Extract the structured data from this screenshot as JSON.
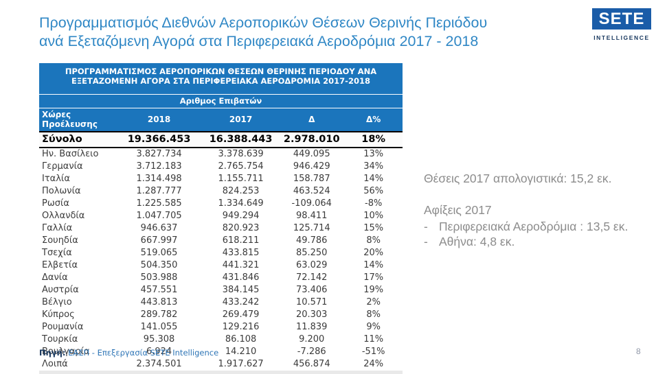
{
  "page": {
    "title_line1": "Προγραμματισμός Διεθνών Αεροπορικών Θέσεων Θερινής Περιόδου",
    "title_line2": "ανά Εξεταζόμενη Αγορά στα Περιφερειακά Αεροδρόμια 2017 - 2018",
    "page_number": "8"
  },
  "logo": {
    "text": "SETE",
    "subtext": "INTELLIGENCE",
    "box_color": "#1a5ca8",
    "subtext_color": "#17375e"
  },
  "colors": {
    "title_blue": "#2f87c5",
    "table_header_blue": "#1b75bc",
    "notes_gray": "#8c8c8c",
    "source_blue": "#2e75b6"
  },
  "table": {
    "header_line1": "ΠΡΟΓΡΑΜΜΑΤΙΣΜΟΣ ΑΕΡΟΠΟΡΙΚΩΝ ΘΕΣΕΩΝ ΘΕΡΙΝΗΣ ΠΕΡΙΟΔΟΥ ΑΝΑ",
    "header_line2": "ΕΞΕΤΑΖΟΜΕΝΗ ΑΓΟΡΑ ΣΤΑ ΠΕΡΙΦΕΡΕΙΑΚΑ ΑΕΡΟΔΡΟΜΙΑ 2017-2018",
    "subheader": "Αριθμος Επιβατών",
    "columns": [
      "Χώρες Προέλευσης",
      "2018",
      "2017",
      "Δ",
      "Δ%"
    ],
    "total_row": {
      "label": "Σύνολο",
      "y2018": "19.366.453",
      "y2017": "16.388.443",
      "delta": "2.978.010",
      "delta_pct": "18%"
    },
    "rows": [
      {
        "label": "Ην. Βασίλειο",
        "y2018": "3.827.734",
        "y2017": "3.378.639",
        "delta": "449.095",
        "delta_pct": "13%"
      },
      {
        "label": "Γερμανία",
        "y2018": "3.712.183",
        "y2017": "2.765.754",
        "delta": "946.429",
        "delta_pct": "34%"
      },
      {
        "label": "Ιταλία",
        "y2018": "1.314.498",
        "y2017": "1.155.711",
        "delta": "158.787",
        "delta_pct": "14%"
      },
      {
        "label": "Πολωνία",
        "y2018": "1.287.777",
        "y2017": "824.253",
        "delta": "463.524",
        "delta_pct": "56%"
      },
      {
        "label": "Ρωσία",
        "y2018": "1.225.585",
        "y2017": "1.334.649",
        "delta": "-109.064",
        "delta_pct": "-8%"
      },
      {
        "label": "Ολλανδία",
        "y2018": "1.047.705",
        "y2017": "949.294",
        "delta": "98.411",
        "delta_pct": "10%"
      },
      {
        "label": "Γαλλία",
        "y2018": "946.637",
        "y2017": "820.923",
        "delta": "125.714",
        "delta_pct": "15%"
      },
      {
        "label": "Σουηδία",
        "y2018": "667.997",
        "y2017": "618.211",
        "delta": "49.786",
        "delta_pct": "8%"
      },
      {
        "label": "Τσεχία",
        "y2018": "519.065",
        "y2017": "433.815",
        "delta": "85.250",
        "delta_pct": "20%"
      },
      {
        "label": "Ελβετία",
        "y2018": "504.350",
        "y2017": "441.321",
        "delta": "63.029",
        "delta_pct": "14%"
      },
      {
        "label": "Δανία",
        "y2018": "503.988",
        "y2017": "431.846",
        "delta": "72.142",
        "delta_pct": "17%"
      },
      {
        "label": "Αυστρία",
        "y2018": "457.551",
        "y2017": "384.145",
        "delta": "73.406",
        "delta_pct": "19%"
      },
      {
        "label": "Βέλγιο",
        "y2018": "443.813",
        "y2017": "433.242",
        "delta": "10.571",
        "delta_pct": "2%"
      },
      {
        "label": "Κύπρος",
        "y2018": "289.782",
        "y2017": "269.479",
        "delta": "20.303",
        "delta_pct": "8%"
      },
      {
        "label": "Ρουμανία",
        "y2018": "141.055",
        "y2017": "129.216",
        "delta": "11.839",
        "delta_pct": "9%"
      },
      {
        "label": "Τουρκία",
        "y2018": "95.308",
        "y2017": "86.108",
        "delta": "9.200",
        "delta_pct": "11%"
      },
      {
        "label": "Βουλγαρία",
        "y2018": "6.924",
        "y2017": "14.210",
        "delta": "-7.286",
        "delta_pct": "-51%"
      },
      {
        "label": "Λοιπά",
        "y2018": "2.374.501",
        "y2017": "1.917.627",
        "delta": "456.874",
        "delta_pct": "24%"
      }
    ]
  },
  "source": {
    "label": "Πηγή:",
    "text": " ΕΑΣΠ - Επεξεργασία SETE Intelligence"
  },
  "notes": {
    "line1": "Θέσεις 2017 απολογιστικά: 15,2 εκ.",
    "line2": "Αφίξεις 2017",
    "dash": "-",
    "bullet1": "Περιφερειακά Αεροδρόμια : 13,5 εκ.",
    "bullet2": "Αθήνα: 4,8 εκ."
  }
}
